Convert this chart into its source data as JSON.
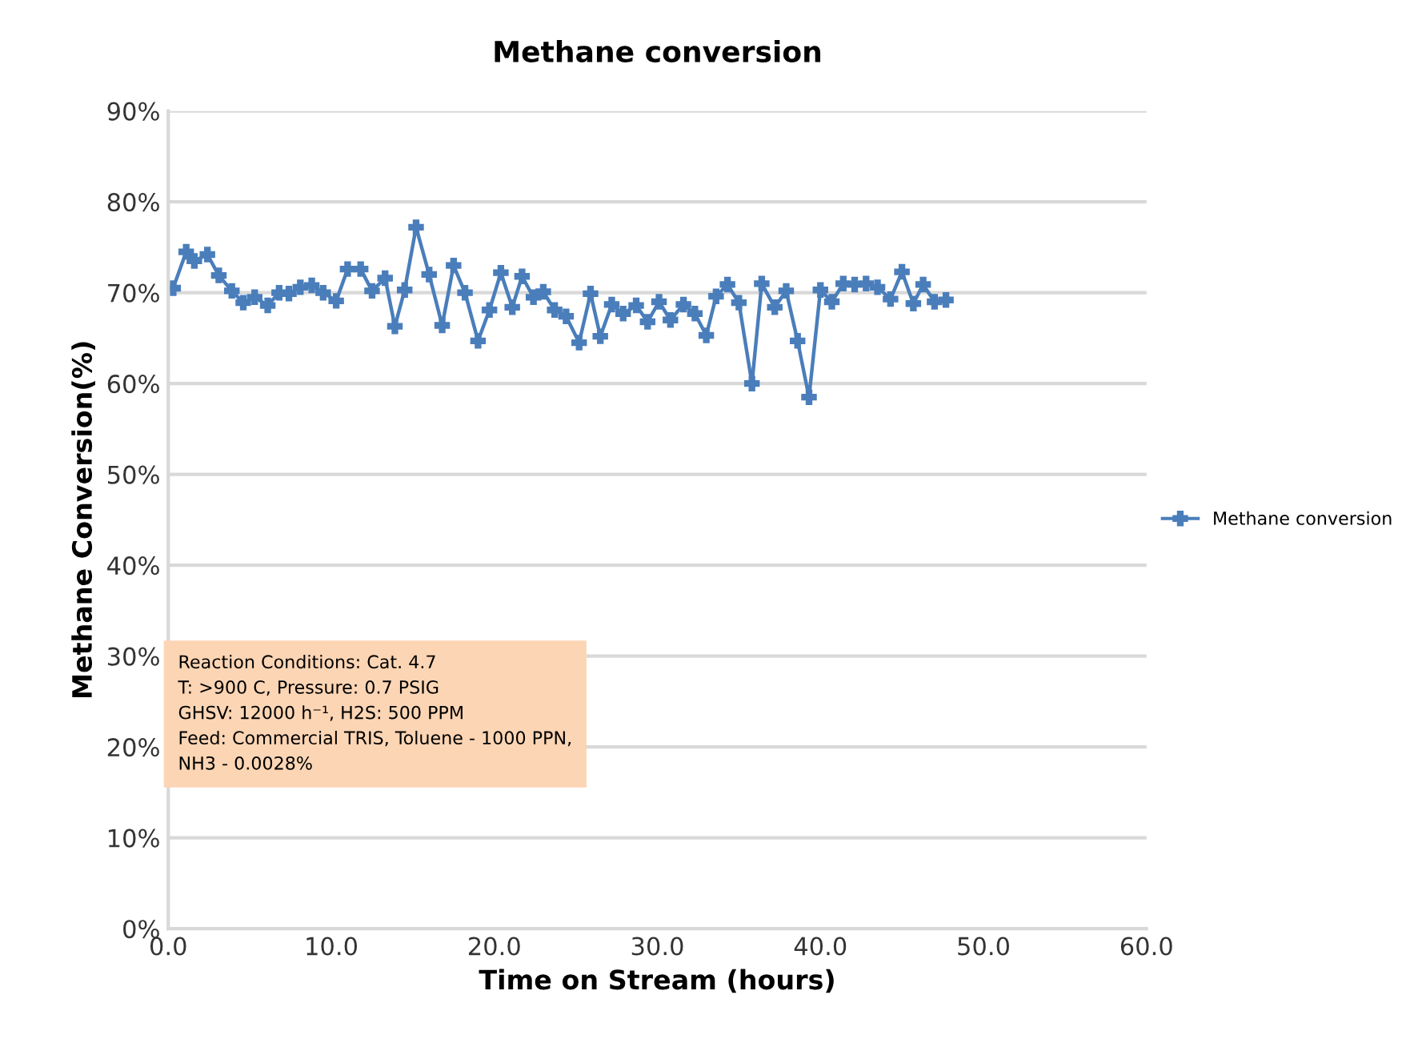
{
  "chart_data": {
    "type": "line",
    "title": "Methane conversion",
    "xlabel": "Time on Stream (hours)",
    "ylabel": "Methane Conversion(%)",
    "xlim": [
      0,
      60
    ],
    "ylim": [
      0,
      90
    ],
    "xticks": [
      {
        "value": 0,
        "label": "0.0"
      },
      {
        "value": 10,
        "label": "10.0"
      },
      {
        "value": 20,
        "label": "20.0"
      },
      {
        "value": 30,
        "label": "30.0"
      },
      {
        "value": 40,
        "label": "40.0"
      },
      {
        "value": 50,
        "label": "50.0"
      },
      {
        "value": 60,
        "label": "60.0"
      }
    ],
    "yticks": [
      {
        "value": 0,
        "label": "0%"
      },
      {
        "value": 10,
        "label": "10%"
      },
      {
        "value": 20,
        "label": "20%"
      },
      {
        "value": 30,
        "label": "30%"
      },
      {
        "value": 40,
        "label": "40%"
      },
      {
        "value": 50,
        "label": "50%"
      },
      {
        "value": 60,
        "label": "60%"
      },
      {
        "value": 70,
        "label": "70%"
      },
      {
        "value": 80,
        "label": "80%"
      },
      {
        "value": 90,
        "label": "90%"
      }
    ],
    "grid": "y",
    "legend": "right",
    "marker": "cross",
    "line_style": "solid",
    "series": [
      {
        "name": "Methane conversion",
        "color": "#4a7ebb",
        "x": [
          0.3,
          1.1,
          1.6,
          2.4,
          3.1,
          3.9,
          4.6,
          5.3,
          6.1,
          6.8,
          7.4,
          8.1,
          8.8,
          9.5,
          10.3,
          11.0,
          11.8,
          12.5,
          13.3,
          13.9,
          14.5,
          15.2,
          16.0,
          16.8,
          17.5,
          18.2,
          19.0,
          19.7,
          20.4,
          21.1,
          21.7,
          22.4,
          23.0,
          23.7,
          24.4,
          25.2,
          25.9,
          26.5,
          27.2,
          27.9,
          28.7,
          29.4,
          30.1,
          30.8,
          31.6,
          32.3,
          33.0,
          33.6,
          34.3,
          35.0,
          35.8,
          36.4,
          37.2,
          37.9,
          38.6,
          39.3,
          40.0,
          40.7,
          41.4,
          42.1,
          42.8,
          43.5,
          44.3,
          45.0,
          45.7,
          46.3,
          47.0,
          47.7
        ],
        "values": [
          70.5,
          74.5,
          73.5,
          74.2,
          71.9,
          70.2,
          68.9,
          69.5,
          68.6,
          70.0,
          69.9,
          70.6,
          70.8,
          70.0,
          69.1,
          72.6,
          72.6,
          70.2,
          71.6,
          66.3,
          70.3,
          77.2,
          72.0,
          66.4,
          73.0,
          70.0,
          64.7,
          68.1,
          72.2,
          68.4,
          71.8,
          69.5,
          70.1,
          68.1,
          67.4,
          64.5,
          69.9,
          65.2,
          68.7,
          67.7,
          68.6,
          66.8,
          69.0,
          67.0,
          68.7,
          67.7,
          65.3,
          69.6,
          70.9,
          68.9,
          60.0,
          71.0,
          68.4,
          70.2,
          64.7,
          58.5,
          70.3,
          69.0,
          71.0,
          70.9,
          71.0,
          70.6,
          69.3,
          72.3,
          68.8,
          70.9,
          69.0,
          69.2
        ]
      }
    ],
    "annotations": [
      "Reaction Conditions: Cat. 4.7\nT: >900 C, Pressure: 0.7 PSIG\nGHSV: 12000 h⁻¹, H2S: 500 PPM\nFeed: Commercial TRIS, Toluene - 1000 PPN,\nNH3 - 0.0028%"
    ]
  }
}
